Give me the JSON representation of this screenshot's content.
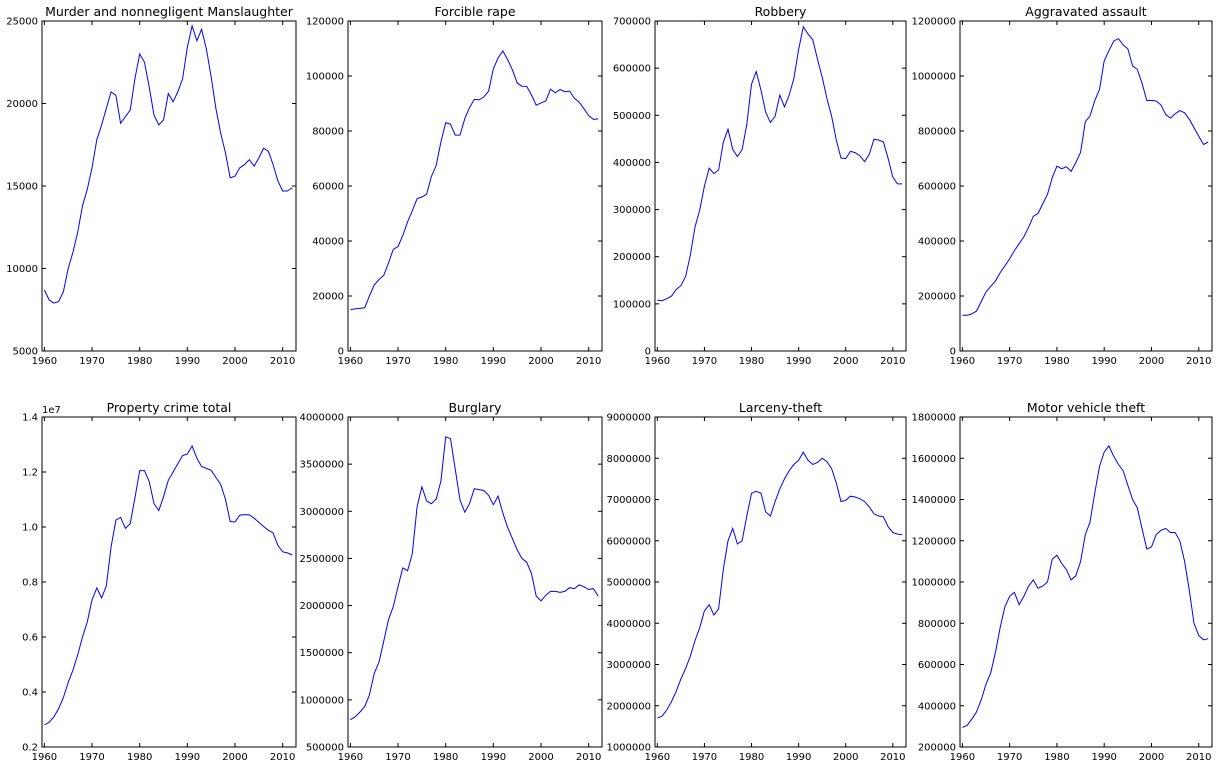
{
  "chart_data": [
    {
      "type": "line",
      "title": "Murder and nonnegligent Manslaughter",
      "xlim": [
        1959.5,
        2012.8
      ],
      "ylim": [
        5000,
        25000
      ],
      "xticks": [
        1960,
        1970,
        1980,
        1990,
        2000,
        2010
      ],
      "yticks": [
        5000,
        10000,
        15000,
        20000,
        25000
      ],
      "ytick_labels": [
        "5000",
        "10000",
        "15000",
        "20000",
        "25000"
      ],
      "offset_label": "",
      "x": [
        1960,
        1961,
        1962,
        1963,
        1964,
        1965,
        1966,
        1967,
        1968,
        1969,
        1970,
        1971,
        1972,
        1973,
        1974,
        1975,
        1976,
        1977,
        1978,
        1979,
        1980,
        1981,
        1982,
        1983,
        1984,
        1985,
        1986,
        1987,
        1988,
        1989,
        1990,
        1991,
        1992,
        1993,
        1994,
        1995,
        1996,
        1997,
        1998,
        1999,
        2000,
        2001,
        2002,
        2003,
        2004,
        2005,
        2006,
        2007,
        2008,
        2009,
        2010,
        2011,
        2012
      ],
      "y": [
        8700,
        8100,
        7900,
        8000,
        8600,
        10000,
        11000,
        12200,
        13800,
        14800,
        16100,
        17800,
        18700,
        19700,
        20700,
        20500,
        18800,
        19200,
        19600,
        21500,
        23000,
        22500,
        21000,
        19300,
        18700,
        19000,
        20600,
        20100,
        20700,
        21500,
        23400,
        24700,
        23800,
        24500,
        23300,
        21600,
        19700,
        18200,
        17000,
        15500,
        15600,
        16100,
        16300,
        16600,
        16200,
        16700,
        17300,
        17100,
        16300,
        15300,
        14700,
        14700,
        14900
      ]
    },
    {
      "type": "line",
      "title": "Forcible rape",
      "xlim": [
        1959.5,
        2012.8
      ],
      "ylim": [
        0,
        120000
      ],
      "xticks": [
        1960,
        1970,
        1980,
        1990,
        2000,
        2010
      ],
      "yticks": [
        0,
        20000,
        40000,
        60000,
        80000,
        100000,
        120000
      ],
      "ytick_labels": [
        "0",
        "20000",
        "40000",
        "60000",
        "80000",
        "100000",
        "120000"
      ],
      "offset_label": "",
      "x": [
        1960,
        1961,
        1962,
        1963,
        1964,
        1965,
        1966,
        1967,
        1968,
        1969,
        1970,
        1971,
        1972,
        1973,
        1974,
        1975,
        1976,
        1977,
        1978,
        1979,
        1980,
        1981,
        1982,
        1983,
        1984,
        1985,
        1986,
        1987,
        1988,
        1989,
        1990,
        1991,
        1992,
        1993,
        1994,
        1995,
        1996,
        1997,
        1998,
        1999,
        2000,
        2001,
        2002,
        2003,
        2004,
        2005,
        2006,
        2007,
        2008,
        2009,
        2010,
        2011,
        2012
      ],
      "y": [
        15000,
        15300,
        15500,
        15700,
        20000,
        24000,
        26000,
        27500,
        32000,
        37000,
        38000,
        42000,
        47000,
        51000,
        55400,
        56000,
        57000,
        63500,
        67500,
        76000,
        83000,
        82500,
        78500,
        78500,
        84500,
        88500,
        91500,
        91300,
        92400,
        94500,
        102600,
        106600,
        109100,
        106000,
        102200,
        97500,
        96300,
        96200,
        93100,
        89400,
        90200,
        90900,
        95200,
        93900,
        95100,
        94300,
        94500,
        91900,
        90500,
        88100,
        85600,
        84200,
        84400
      ]
    },
    {
      "type": "line",
      "title": "Robbery",
      "xlim": [
        1959.5,
        2012.8
      ],
      "ylim": [
        0,
        700000
      ],
      "xticks": [
        1960,
        1970,
        1980,
        1990,
        2000,
        2010
      ],
      "yticks": [
        0,
        100000,
        200000,
        300000,
        400000,
        500000,
        600000,
        700000
      ],
      "ytick_labels": [
        "0",
        "100000",
        "200000",
        "300000",
        "400000",
        "500000",
        "600000",
        "700000"
      ],
      "offset_label": "",
      "x": [
        1960,
        1961,
        1962,
        1963,
        1964,
        1965,
        1966,
        1967,
        1968,
        1969,
        1970,
        1971,
        1972,
        1973,
        1974,
        1975,
        1976,
        1977,
        1978,
        1979,
        1980,
        1981,
        1982,
        1983,
        1984,
        1985,
        1986,
        1987,
        1988,
        1989,
        1990,
        1991,
        1992,
        1993,
        1994,
        1995,
        1996,
        1997,
        1998,
        1999,
        2000,
        2001,
        2002,
        2003,
        2004,
        2005,
        2006,
        2007,
        2008,
        2009,
        2010,
        2011,
        2012
      ],
      "y": [
        107800,
        106700,
        110900,
        116500,
        130400,
        138700,
        157990,
        202910,
        262840,
        298850,
        349860,
        387700,
        376290,
        384220,
        442400,
        470500,
        427810,
        412610,
        426930,
        480700,
        565840,
        592910,
        553130,
        506570,
        485010,
        497870,
        542780,
        517700,
        542970,
        578330,
        639270,
        687730,
        672480,
        659870,
        618950,
        580510,
        535590,
        498530,
        447190,
        409370,
        408020,
        423560,
        420810,
        414240,
        401470,
        417440,
        449250,
        447320,
        443560,
        408740,
        369090,
        354400,
        354520
      ]
    },
    {
      "type": "line",
      "title": "Aggravated assault",
      "xlim": [
        1959.5,
        2012.8
      ],
      "ylim": [
        0,
        1200000
      ],
      "xticks": [
        1960,
        1970,
        1980,
        1990,
        2000,
        2010
      ],
      "yticks": [
        0,
        200000,
        400000,
        600000,
        800000,
        1000000,
        1200000
      ],
      "ytick_labels": [
        "0",
        "200000",
        "400000",
        "600000",
        "800000",
        "1000000",
        "1200000"
      ],
      "offset_label": "",
      "x": [
        1960,
        1961,
        1962,
        1963,
        1964,
        1965,
        1966,
        1967,
        1968,
        1969,
        1970,
        1971,
        1972,
        1973,
        1974,
        1975,
        1976,
        1977,
        1978,
        1979,
        1980,
        1981,
        1982,
        1983,
        1984,
        1985,
        1986,
        1987,
        1988,
        1989,
        1990,
        1991,
        1992,
        1993,
        1994,
        1995,
        1996,
        1997,
        1998,
        1999,
        2000,
        2001,
        2002,
        2003,
        2004,
        2005,
        2006,
        2007,
        2008,
        2009,
        2010,
        2011,
        2012
      ],
      "y": [
        130000,
        130000,
        135000,
        145000,
        180000,
        215000,
        235000,
        255000,
        285000,
        310000,
        335000,
        365000,
        390000,
        415000,
        450000,
        490000,
        500000,
        535000,
        570000,
        630000,
        672000,
        663000,
        670000,
        653000,
        685000,
        723000,
        834000,
        855000,
        910000,
        951000,
        1055000,
        1092000,
        1127000,
        1136000,
        1113000,
        1099000,
        1037000,
        1024000,
        974000,
        911000,
        911000,
        909000,
        895000,
        860000,
        847000,
        862000,
        874000,
        866000,
        843000,
        812000,
        781000,
        751000,
        760000
      ]
    },
    {
      "type": "line",
      "title": "Property crime total",
      "xlim": [
        1959.5,
        2012.8
      ],
      "ylim": [
        2000000,
        14000000
      ],
      "xticks": [
        1960,
        1970,
        1980,
        1990,
        2000,
        2010
      ],
      "yticks": [
        2000000,
        4000000,
        6000000,
        8000000,
        10000000,
        12000000,
        14000000
      ],
      "ytick_labels": [
        "0.2",
        "0.4",
        "0.6",
        "0.8",
        "1.0",
        "1.2",
        "1.4"
      ],
      "offset_label": "1e7",
      "x": [
        1960,
        1961,
        1962,
        1963,
        1964,
        1965,
        1966,
        1967,
        1968,
        1969,
        1970,
        1971,
        1972,
        1973,
        1974,
        1975,
        1976,
        1977,
        1978,
        1979,
        1980,
        1981,
        1982,
        1983,
        1984,
        1985,
        1986,
        1987,
        1988,
        1989,
        1990,
        1991,
        1992,
        1993,
        1994,
        1995,
        1996,
        1997,
        1998,
        1999,
        2000,
        2001,
        2002,
        2003,
        2004,
        2005,
        2006,
        2007,
        2008,
        2009,
        2010,
        2011,
        2012
      ],
      "y": [
        2800000,
        2900000,
        3100000,
        3400000,
        3800000,
        4350000,
        4800000,
        5350000,
        6000000,
        6550000,
        7350000,
        7780000,
        7420000,
        7850000,
        9280000,
        10250000,
        10350000,
        9950000,
        10120000,
        11050000,
        12050000,
        12050000,
        11650000,
        10850000,
        10600000,
        11100000,
        11700000,
        12000000,
        12300000,
        12600000,
        12650000,
        12950000,
        12500000,
        12200000,
        12130000,
        12060000,
        11800000,
        11550000,
        11000000,
        10200000,
        10180000,
        10430000,
        10450000,
        10440000,
        10320000,
        10170000,
        10020000,
        9880000,
        9780000,
        9330000,
        9100000,
        9060000,
        8980000
      ]
    },
    {
      "type": "line",
      "title": "Burglary",
      "xlim": [
        1959.5,
        2012.8
      ],
      "ylim": [
        500000,
        4000000
      ],
      "xticks": [
        1960,
        1970,
        1980,
        1990,
        2000,
        2010
      ],
      "yticks": [
        500000,
        1000000,
        1500000,
        2000000,
        2500000,
        3000000,
        3500000,
        4000000
      ],
      "ytick_labels": [
        "500000",
        "1000000",
        "1500000",
        "2000000",
        "2500000",
        "3000000",
        "3500000",
        "4000000"
      ],
      "offset_label": "",
      "x": [
        1960,
        1961,
        1962,
        1963,
        1964,
        1965,
        1966,
        1967,
        1968,
        1969,
        1970,
        1971,
        1972,
        1973,
        1974,
        1975,
        1976,
        1977,
        1978,
        1979,
        1980,
        1981,
        1982,
        1983,
        1984,
        1985,
        1986,
        1987,
        1988,
        1989,
        1990,
        1991,
        1992,
        1993,
        1994,
        1995,
        1996,
        1997,
        1998,
        1999,
        2000,
        2001,
        2002,
        2003,
        2004,
        2005,
        2006,
        2007,
        2008,
        2009,
        2010,
        2011,
        2012
      ],
      "y": [
        790000,
        820000,
        870000,
        930000,
        1050000,
        1280000,
        1400000,
        1620000,
        1850000,
        1990000,
        2200000,
        2400000,
        2370000,
        2550000,
        3050000,
        3260000,
        3110000,
        3080000,
        3130000,
        3320000,
        3790000,
        3770000,
        3450000,
        3120000,
        2990000,
        3080000,
        3240000,
        3230000,
        3220000,
        3170000,
        3070000,
        3160000,
        2980000,
        2830000,
        2710000,
        2590000,
        2500000,
        2460000,
        2340000,
        2100000,
        2050000,
        2110000,
        2150000,
        2150000,
        2140000,
        2150000,
        2190000,
        2180000,
        2220000,
        2200000,
        2170000,
        2180000,
        2100000
      ]
    },
    {
      "type": "line",
      "title": "Larceny-theft",
      "xlim": [
        1959.5,
        2012.8
      ],
      "ylim": [
        1000000,
        9000000
      ],
      "xticks": [
        1960,
        1970,
        1980,
        1990,
        2000,
        2010
      ],
      "yticks": [
        1000000,
        2000000,
        3000000,
        4000000,
        5000000,
        6000000,
        7000000,
        8000000,
        9000000
      ],
      "ytick_labels": [
        "1000000",
        "2000000",
        "3000000",
        "4000000",
        "5000000",
        "6000000",
        "7000000",
        "8000000",
        "9000000"
      ],
      "offset_label": "",
      "x": [
        1960,
        1961,
        1962,
        1963,
        1964,
        1965,
        1966,
        1967,
        1968,
        1969,
        1970,
        1971,
        1972,
        1973,
        1974,
        1975,
        1976,
        1977,
        1978,
        1979,
        1980,
        1981,
        1982,
        1983,
        1984,
        1985,
        1986,
        1987,
        1988,
        1989,
        1990,
        1991,
        1992,
        1993,
        1994,
        1995,
        1996,
        1997,
        1998,
        1999,
        2000,
        2001,
        2002,
        2003,
        2004,
        2005,
        2006,
        2007,
        2008,
        2009,
        2010,
        2011,
        2012
      ],
      "y": [
        1700000,
        1750000,
        1900000,
        2100000,
        2350000,
        2650000,
        2900000,
        3200000,
        3580000,
        3890000,
        4300000,
        4450000,
        4200000,
        4350000,
        5300000,
        6000000,
        6300000,
        5920000,
        6000000,
        6600000,
        7150000,
        7200000,
        7150000,
        6700000,
        6600000,
        6950000,
        7260000,
        7500000,
        7700000,
        7850000,
        7950000,
        8150000,
        7950000,
        7850000,
        7900000,
        8000000,
        7920000,
        7750000,
        7400000,
        6950000,
        6980000,
        7080000,
        7060000,
        7020000,
        6950000,
        6820000,
        6650000,
        6600000,
        6580000,
        6340000,
        6200000,
        6160000,
        6150000
      ]
    },
    {
      "type": "line",
      "title": "Motor vehicle theft",
      "xlim": [
        1959.5,
        2012.8
      ],
      "ylim": [
        200000,
        1800000
      ],
      "xticks": [
        1960,
        1970,
        1980,
        1990,
        2000,
        2010
      ],
      "yticks": [
        200000,
        400000,
        600000,
        800000,
        1000000,
        1200000,
        1400000,
        1600000,
        1800000
      ],
      "ytick_labels": [
        "200000",
        "400000",
        "600000",
        "800000",
        "1000000",
        "1200000",
        "1400000",
        "1600000",
        "1800000"
      ],
      "offset_label": "",
      "x": [
        1960,
        1961,
        1962,
        1963,
        1964,
        1965,
        1966,
        1967,
        1968,
        1969,
        1970,
        1971,
        1972,
        1973,
        1974,
        1975,
        1976,
        1977,
        1978,
        1979,
        1980,
        1981,
        1982,
        1983,
        1984,
        1985,
        1986,
        1987,
        1988,
        1989,
        1990,
        1991,
        1992,
        1993,
        1994,
        1995,
        1996,
        1997,
        1998,
        1999,
        2000,
        2001,
        2002,
        2003,
        2004,
        2005,
        2006,
        2007,
        2008,
        2009,
        2010,
        2011,
        2012
      ],
      "y": [
        295000,
        305000,
        335000,
        370000,
        430000,
        505000,
        560000,
        660000,
        780000,
        880000,
        930000,
        950000,
        890000,
        930000,
        980000,
        1010000,
        970000,
        980000,
        1000000,
        1110000,
        1130000,
        1090000,
        1060000,
        1010000,
        1030000,
        1100000,
        1230000,
        1290000,
        1430000,
        1560000,
        1630000,
        1660000,
        1610000,
        1570000,
        1540000,
        1470000,
        1400000,
        1360000,
        1260000,
        1160000,
        1170000,
        1230000,
        1250000,
        1260000,
        1240000,
        1240000,
        1200000,
        1100000,
        960000,
        800000,
        740000,
        720000,
        725000
      ]
    }
  ]
}
